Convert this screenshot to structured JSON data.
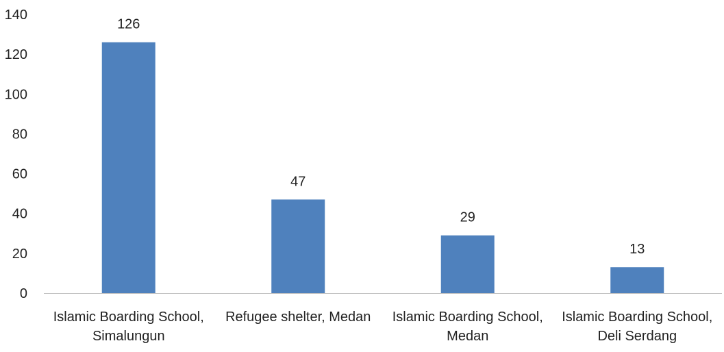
{
  "chart_data": {
    "type": "bar",
    "title": "",
    "xlabel": "",
    "ylabel": "",
    "categories": [
      [
        "Islamic Boarding School,",
        "Simalungun"
      ],
      [
        "Refugee shelter, Medan"
      ],
      [
        "Islamic Boarding School,",
        "Medan"
      ],
      [
        "Islamic Boarding School,",
        "Deli Serdang"
      ]
    ],
    "values": [
      126,
      47,
      29,
      13
    ],
    "ylim": [
      0,
      140
    ],
    "yticks": [
      0,
      20,
      40,
      60,
      80,
      100,
      120,
      140
    ],
    "grid": false,
    "legend": "none",
    "colors": {
      "bar": "#4f81bd",
      "axis": "#bfbfbf",
      "text": "#222222"
    }
  }
}
